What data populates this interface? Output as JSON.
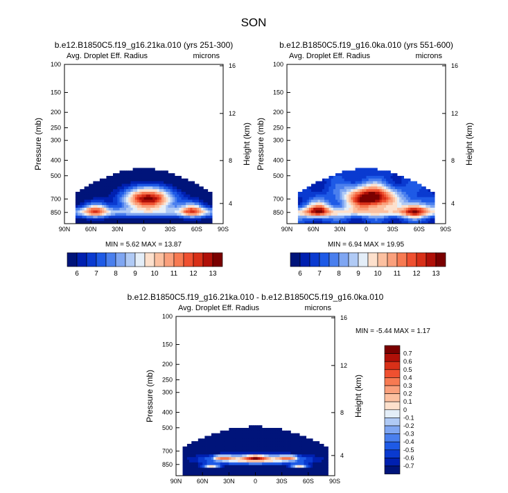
{
  "figure": {
    "title": "SON"
  },
  "colors": {
    "cmap12": [
      "#00147a",
      "#0020b0",
      "#0a3ad0",
      "#1e5ae6",
      "#4a7fee",
      "#7fa6f2",
      "#b0caf5",
      "#e4eef8",
      "#fde0cc",
      "#fcc0a0",
      "#faa07c",
      "#f77a52",
      "#ef5030",
      "#d83018",
      "#b01008",
      "#7a0000"
    ],
    "cmapDiff": [
      "#00147a",
      "#0020b0",
      "#0a3ad0",
      "#1e5ae6",
      "#4a7fee",
      "#7fa6f2",
      "#b0caf5",
      "#e4eef8",
      "#fde0cc",
      "#fcc0a0",
      "#faa07c",
      "#f77a52",
      "#ef5030",
      "#d83018",
      "#b01008",
      "#7a0000"
    ]
  },
  "chart_data": [
    {
      "type": "heatmap",
      "title": "b.e12.B1850C5.f19_g16.21ka.010 (yrs 251-300)",
      "left_label": "Avg. Droplet Eff. Radius",
      "right_label": "microns",
      "ylabel": "Pressure (mb)",
      "y2label": "Height (km)",
      "xticks": [
        "90N",
        "60N",
        "30N",
        "0",
        "30S",
        "60S",
        "90S"
      ],
      "yticks": [
        "100",
        "150",
        "200",
        "250",
        "300",
        "400",
        "500",
        "700",
        "850"
      ],
      "y2ticks": [
        "16",
        "12",
        "8",
        "4"
      ],
      "stats": "MIN =   5.62  MAX =  13.87",
      "colorbar_labels": [
        "6",
        "7",
        "8",
        "9",
        "10",
        "11",
        "12",
        "13"
      ],
      "field": {
        "top_mb": 450,
        "peak_value": 13.5,
        "peak_lat": -5,
        "peak_mb": 700,
        "min_value": 5.6
      }
    },
    {
      "type": "heatmap",
      "title": "b.e12.B1850C5.f19_g16.0ka.010 (yrs 551-600)",
      "left_label": "Avg. Droplet Eff. Radius",
      "right_label": "microns",
      "ylabel": "Pressure (mb)",
      "y2label": "Height (km)",
      "xticks": [
        "90N",
        "60N",
        "30N",
        "0",
        "30S",
        "60S",
        "90S"
      ],
      "yticks": [
        "100",
        "150",
        "200",
        "250",
        "300",
        "400",
        "500",
        "700",
        "850"
      ],
      "y2ticks": [
        "16",
        "12",
        "8",
        "4"
      ],
      "stats": "MIN =   6.94  MAX =  19.95",
      "colorbar_labels": [
        "6",
        "7",
        "8",
        "9",
        "10",
        "11",
        "12",
        "13"
      ],
      "field": {
        "top_mb": 450,
        "peak_value": 14.5,
        "peak_lat": -5,
        "peak_mb": 690,
        "min_value": 6.9
      }
    },
    {
      "type": "heatmap",
      "title": "b.e12.B1850C5.f19_g16.21ka.010 - b.e12.B1850C5.f19_g16.0ka.010",
      "left_label": "Avg. Droplet Eff. Radius",
      "right_label": "microns",
      "ylabel": "Pressure (mb)",
      "y2label": "Height (km)",
      "xticks": [
        "90N",
        "60N",
        "30N",
        "0",
        "30S",
        "60S",
        "90S"
      ],
      "yticks": [
        "100",
        "150",
        "200",
        "250",
        "300",
        "400",
        "500",
        "700",
        "850"
      ],
      "y2ticks": [
        "16",
        "12",
        "8",
        "4"
      ],
      "stats": "MIN =  -5.44  MAX =   1.17",
      "colorbar_labels": [
        "0.7",
        "0.6",
        "0.5",
        "0.4",
        "0.3",
        "0.2",
        "0.1",
        "0",
        "-0.1",
        "-0.2",
        "-0.3",
        "-0.4",
        "-0.5",
        "-0.6",
        "-0.7"
      ],
      "field": {
        "top_mb": 480,
        "min_value": -5.44,
        "max_value": 1.17
      }
    }
  ]
}
